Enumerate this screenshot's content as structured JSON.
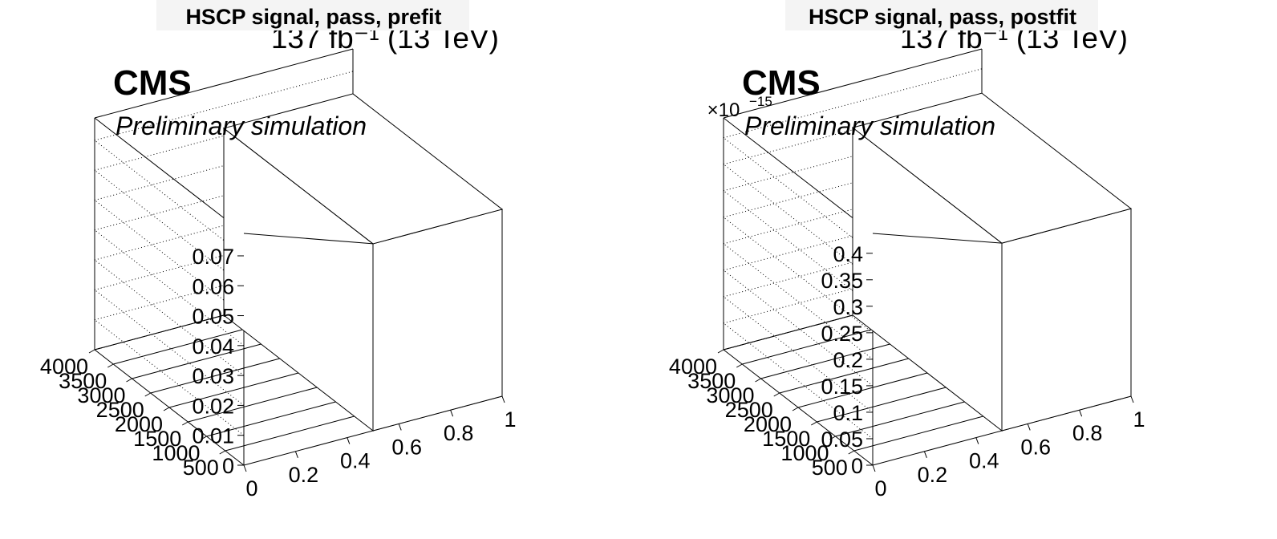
{
  "lumi_label": "137 fb⁻¹ (13 TeV)",
  "cms_label": "CMS",
  "preliminary_label": "Preliminary simulation",
  "chart_data": [
    {
      "type": "lego",
      "title": "HSCP signal, pass, prefit",
      "x_ticks": [
        "0",
        "0.2",
        "0.4",
        "0.6",
        "0.8",
        "1"
      ],
      "y_ticks": [
        "500",
        "1000",
        "1500",
        "2000",
        "2500",
        "3000",
        "3500",
        "4000"
      ],
      "z_ticks": [
        "0",
        "0.01",
        "0.02",
        "0.03",
        "0.04",
        "0.05",
        "0.06",
        "0.07"
      ],
      "z_multiplier": "",
      "xlim": [
        0,
        1
      ],
      "ylim": [
        0,
        4000
      ],
      "zlim": [
        0,
        0.0775
      ],
      "z_grid": true,
      "bins": [
        {
          "x": [
            0.5,
            1.0
          ],
          "y": [
            0,
            4000
          ],
          "z": 0.0625
        }
      ]
    },
    {
      "type": "lego",
      "title": "HSCP signal, pass, postfit",
      "x_ticks": [
        "0",
        "0.2",
        "0.4",
        "0.6",
        "0.8",
        "1"
      ],
      "y_ticks": [
        "500",
        "1000",
        "1500",
        "2000",
        "2500",
        "3000",
        "3500",
        "4000"
      ],
      "z_ticks": [
        "0",
        "0.05",
        "0.1",
        "0.15",
        "0.2",
        "0.25",
        "0.3",
        "0.35",
        "0.4"
      ],
      "z_multiplier": "×10",
      "z_multiplier_exponent": "−15",
      "xlim": [
        0,
        1
      ],
      "ylim": [
        0,
        4000
      ],
      "zlim": [
        0,
        0.4375
      ],
      "z_grid": true,
      "bins": [
        {
          "x": [
            0.5,
            1.0
          ],
          "y": [
            0,
            4000
          ],
          "z": 0.354
        }
      ]
    }
  ]
}
